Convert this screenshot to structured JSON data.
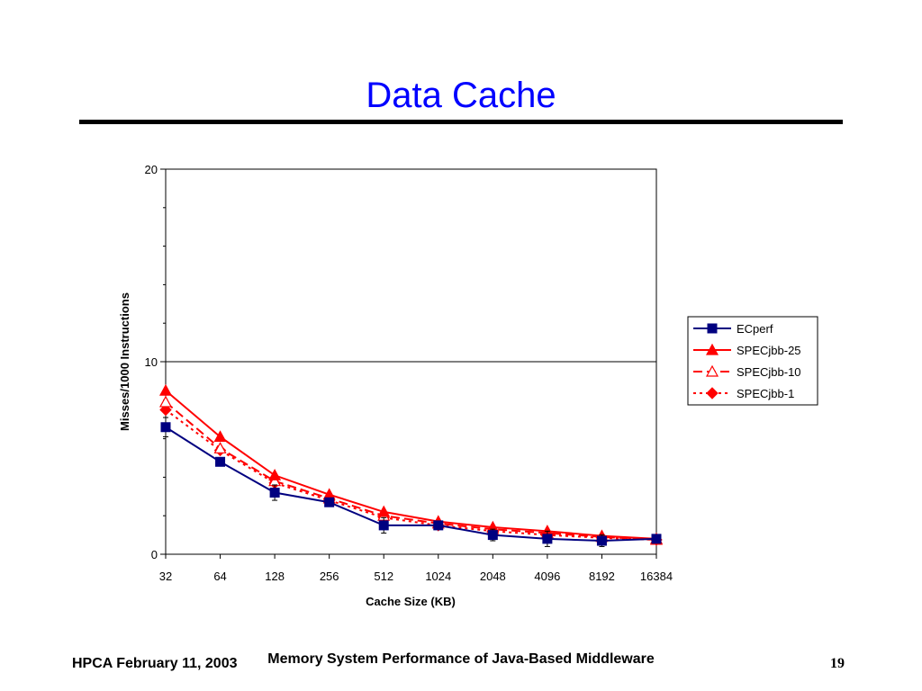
{
  "slide": {
    "title": "Data Cache",
    "footer_left": "HPCA February 11, 2003",
    "footer_center": "Memory System Performance of Java-Based Middleware",
    "page_number": "19"
  },
  "chart_data": {
    "type": "line",
    "xlabel": "Cache Size (KB)",
    "ylabel": "Misses/1000 Instructions",
    "categories": [
      "32",
      "64",
      "128",
      "256",
      "512",
      "1024",
      "2048",
      "4096",
      "8192",
      "16384"
    ],
    "ylim": [
      0,
      20
    ],
    "yticks": [
      "0",
      "10",
      "20"
    ],
    "grid": "horizontal line at 10",
    "legend_position": "right",
    "series": [
      {
        "name": "ECperf",
        "color": "#000080",
        "style": "solid",
        "marker": "square",
        "values": [
          6.6,
          4.8,
          3.2,
          2.7,
          1.5,
          1.5,
          1.0,
          0.8,
          0.7,
          0.8
        ],
        "error": [
          0.5,
          0.15,
          0.4,
          0.15,
          0.4,
          0.1,
          0.3,
          0.4,
          0.3,
          0.1
        ]
      },
      {
        "name": "SPECjbb-25",
        "color": "#ff0000",
        "style": "solid",
        "marker": "triangle-filled",
        "values": [
          8.5,
          6.1,
          4.1,
          3.1,
          2.2,
          1.7,
          1.4,
          1.2,
          0.95,
          0.8
        ]
      },
      {
        "name": "SPECjbb-10",
        "color": "#ff0000",
        "style": "dashed",
        "marker": "triangle-open",
        "values": [
          7.9,
          5.5,
          3.8,
          2.9,
          2.0,
          1.6,
          1.3,
          1.1,
          0.9,
          0.75
        ]
      },
      {
        "name": "SPECjbb-1",
        "color": "#ff0000",
        "style": "dotted",
        "marker": "diamond",
        "values": [
          7.5,
          5.4,
          3.7,
          2.8,
          1.9,
          1.5,
          1.2,
          1.0,
          0.85,
          0.75
        ]
      }
    ]
  }
}
